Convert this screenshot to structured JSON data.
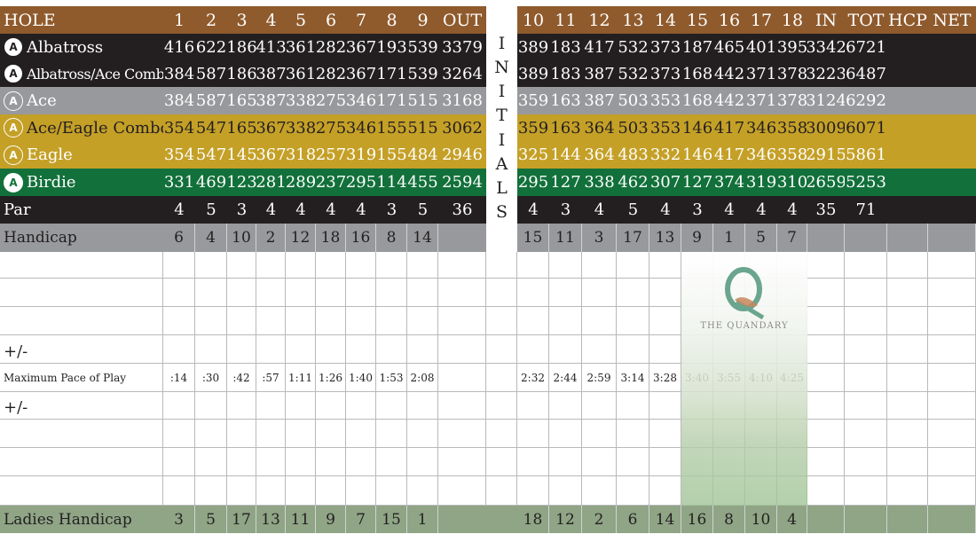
{
  "header": {
    "hole_label": "HOLE",
    "front": [
      "1",
      "2",
      "3",
      "4",
      "5",
      "6",
      "7",
      "8",
      "9"
    ],
    "out": "OUT",
    "back": [
      "10",
      "11",
      "12",
      "13",
      "14",
      "15",
      "16",
      "17",
      "18"
    ],
    "in": "IN",
    "tot": "TOT",
    "hcp": "HCP",
    "net": "NET"
  },
  "tees": [
    {
      "name": "Albatross",
      "icon": "albatross-icon",
      "front": [
        "416",
        "622",
        "186",
        "413",
        "361",
        "282",
        "367",
        "193",
        "539"
      ],
      "out": "3379",
      "back": [
        "389",
        "183",
        "417",
        "532",
        "373",
        "187",
        "465",
        "401",
        "395"
      ],
      "in": "3342",
      "tot": "6721"
    },
    {
      "name": "Albatross/Ace Combo",
      "icon": "albatross-ace-icon",
      "front": [
        "384",
        "587",
        "186",
        "387",
        "361",
        "282",
        "367",
        "171",
        "539"
      ],
      "out": "3264",
      "back": [
        "389",
        "183",
        "387",
        "532",
        "373",
        "168",
        "442",
        "371",
        "378"
      ],
      "in": "3223",
      "tot": "6487"
    },
    {
      "name": "Ace",
      "icon": "ace-icon",
      "front": [
        "384",
        "587",
        "165",
        "387",
        "338",
        "275",
        "346",
        "171",
        "515"
      ],
      "out": "3168",
      "back": [
        "359",
        "163",
        "387",
        "503",
        "353",
        "168",
        "442",
        "371",
        "378"
      ],
      "in": "3124",
      "tot": "6292"
    },
    {
      "name": "Ace/Eagle Combo",
      "icon": "ace-eagle-icon",
      "front": [
        "354",
        "547",
        "165",
        "367",
        "338",
        "275",
        "346",
        "155",
        "515"
      ],
      "out": "3062",
      "back": [
        "359",
        "163",
        "364",
        "503",
        "353",
        "146",
        "417",
        "346",
        "358"
      ],
      "in": "3009",
      "tot": "6071"
    },
    {
      "name": "Eagle",
      "icon": "eagle-icon",
      "front": [
        "354",
        "547",
        "145",
        "367",
        "318",
        "257",
        "319",
        "155",
        "484"
      ],
      "out": "2946",
      "back": [
        "325",
        "144",
        "364",
        "483",
        "332",
        "146",
        "417",
        "346",
        "358"
      ],
      "in": "2915",
      "tot": "5861"
    },
    {
      "name": "Birdie",
      "icon": "birdie-icon",
      "front": [
        "331",
        "469",
        "123",
        "281",
        "289",
        "237",
        "295",
        "114",
        "455"
      ],
      "out": "2594",
      "back": [
        "295",
        "127",
        "338",
        "462",
        "307",
        "127",
        "374",
        "319",
        "310"
      ],
      "in": "2659",
      "tot": "5253"
    }
  ],
  "par": {
    "label": "Par",
    "front": [
      "4",
      "5",
      "3",
      "4",
      "4",
      "4",
      "4",
      "3",
      "5"
    ],
    "out": "36",
    "back": [
      "4",
      "3",
      "4",
      "5",
      "4",
      "3",
      "4",
      "4",
      "4"
    ],
    "in": "35",
    "tot": "71"
  },
  "handicap": {
    "label": "Handicap",
    "front": [
      "6",
      "4",
      "10",
      "2",
      "12",
      "18",
      "16",
      "8",
      "14"
    ],
    "back": [
      "15",
      "11",
      "3",
      "17",
      "13",
      "9",
      "1",
      "5",
      "7"
    ]
  },
  "initials": [
    "I",
    "N",
    "I",
    "T",
    "I",
    "A",
    "L",
    "S"
  ],
  "plus_minus": "+/-",
  "pace": {
    "label": "Maximum Pace of Play",
    "front": [
      ":14",
      ":30",
      ":42",
      ":57",
      "1:11",
      "1:26",
      "1:40",
      "1:53",
      "2:08"
    ],
    "back": [
      "2:32",
      "2:44",
      "2:59",
      "3:14",
      "3:28",
      "3:40",
      "3:55",
      "4:10",
      "4:25"
    ]
  },
  "ladies": {
    "label": "Ladies Handicap",
    "front": [
      "3",
      "5",
      "17",
      "13",
      "11",
      "9",
      "7",
      "15",
      "1"
    ],
    "back": [
      "18",
      "12",
      "2",
      "6",
      "14",
      "16",
      "8",
      "10",
      "4"
    ]
  },
  "logo": {
    "text": "THE QUANDARY"
  }
}
